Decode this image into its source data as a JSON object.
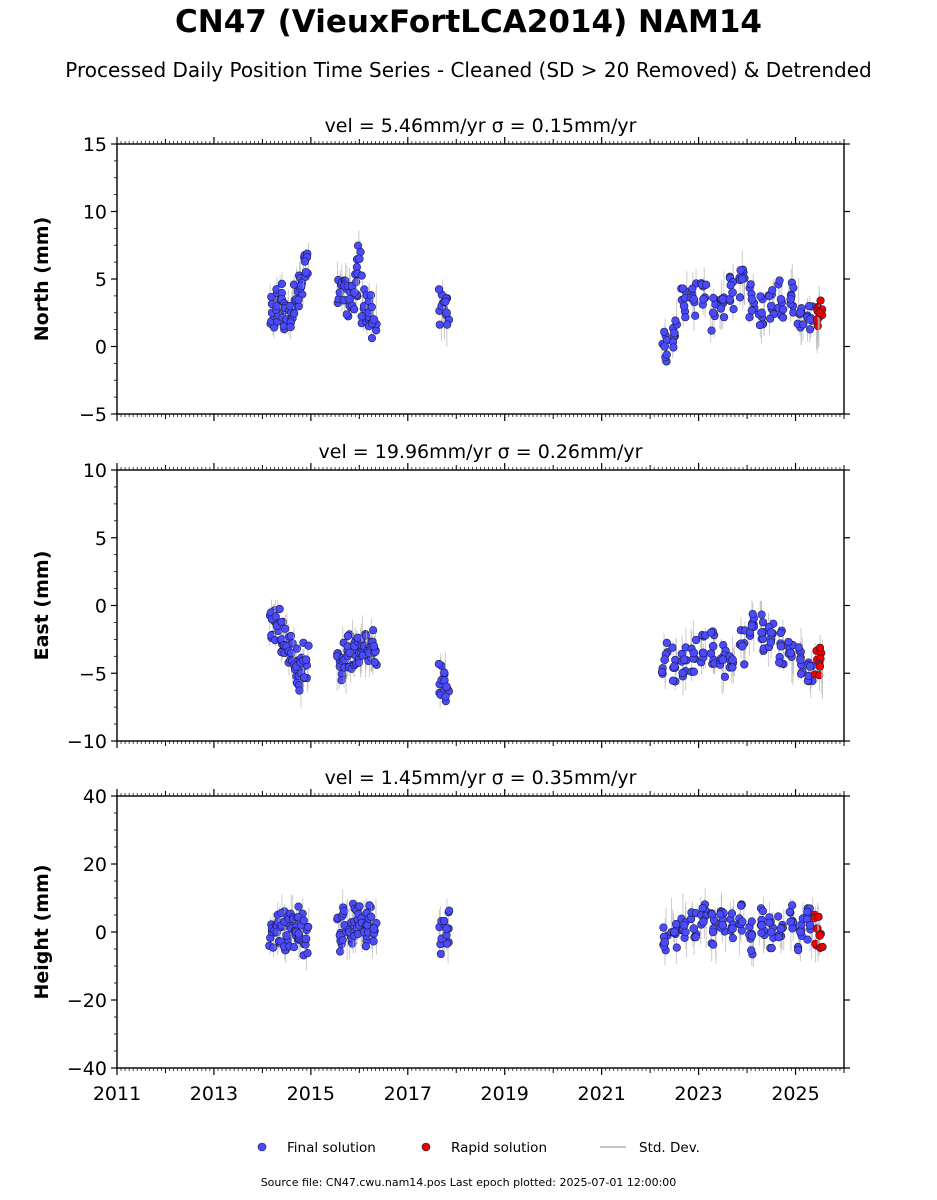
{
  "title": "CN47 (VieuxFortLCA2014) NAM14",
  "subtitle": "Processed Daily Position Time Series - Cleaned (SD > 20 Removed) & Detrended",
  "footer": "Source file: CN47.cwu.nam14.pos  Last epoch plotted: 2025-07-01 12:00:00",
  "colors": {
    "final": "#4a4aff",
    "rapid": "#ee0000",
    "stddev": "#b0b0b0",
    "marker_edge": "#1a1a40"
  },
  "legend": [
    {
      "key": "final",
      "label": "Final solution"
    },
    {
      "key": "rapid",
      "label": "Rapid solution"
    },
    {
      "key": "stddev",
      "label": "Std. Dev."
    }
  ],
  "chart_data": [
    {
      "type": "scatter",
      "title": "vel = 5.46mm/yr   σ = 0.15mm/yr",
      "ylabel": "North (mm)",
      "xlim": [
        2011,
        2026
      ],
      "ylim": [
        -5,
        15
      ],
      "yticks": [
        -5,
        0,
        5,
        10,
        15
      ],
      "ytick_labels": [
        "−5",
        "0",
        "5",
        "10",
        "15"
      ],
      "xticks": [
        2011,
        2013,
        2015,
        2017,
        2019,
        2021,
        2023,
        2025
      ],
      "xtick_labels": [],
      "series": [
        {
          "key": "final",
          "x": [
            2014.2,
            2014.3,
            2014.4,
            2014.5,
            2014.6,
            2014.7,
            2014.8,
            2014.9,
            2015.6,
            2015.7,
            2015.8,
            2015.9,
            2016.0,
            2016.1,
            2016.2,
            2016.3,
            2017.7,
            2017.8,
            2022.3,
            2022.5,
            2022.7,
            2022.9,
            2023.1,
            2023.3,
            2023.5,
            2023.7,
            2023.9,
            2024.1,
            2024.3,
            2024.5,
            2024.7,
            2024.9,
            2025.1,
            2025.3
          ],
          "y": [
            2.5,
            3.0,
            3.5,
            2.0,
            2.5,
            3.5,
            4.5,
            5.5,
            4.0,
            4.5,
            3.5,
            4.0,
            6.5,
            3.0,
            2.5,
            2.0,
            3.0,
            2.5,
            0.0,
            1.0,
            3.0,
            3.5,
            3.5,
            2.5,
            3.5,
            4.0,
            5.0,
            3.5,
            2.5,
            3.0,
            3.5,
            3.5,
            2.5,
            2.0
          ]
        },
        {
          "key": "rapid",
          "x": [
            2025.45,
            2025.5
          ],
          "y": [
            2.0,
            2.5
          ]
        }
      ]
    },
    {
      "type": "scatter",
      "title": "vel = 19.96mm/yr   σ = 0.26mm/yr",
      "ylabel": "East (mm)",
      "xlim": [
        2011,
        2026
      ],
      "ylim": [
        -10,
        10
      ],
      "yticks": [
        -10,
        -5,
        0,
        5,
        10
      ],
      "ytick_labels": [
        "−10",
        "−5",
        "0",
        "5",
        "10"
      ],
      "xticks": [
        2011,
        2013,
        2015,
        2017,
        2019,
        2021,
        2023,
        2025
      ],
      "xtick_labels": [],
      "series": [
        {
          "key": "final",
          "x": [
            2014.2,
            2014.3,
            2014.4,
            2014.5,
            2014.6,
            2014.7,
            2014.8,
            2014.9,
            2015.6,
            2015.7,
            2015.8,
            2015.9,
            2016.0,
            2016.1,
            2016.2,
            2016.3,
            2017.7,
            2017.8,
            2022.3,
            2022.5,
            2022.7,
            2022.9,
            2023.1,
            2023.3,
            2023.5,
            2023.7,
            2023.9,
            2024.1,
            2024.3,
            2024.5,
            2024.7,
            2024.9,
            2025.1,
            2025.3
          ],
          "y": [
            -1.0,
            -1.5,
            -2.5,
            -3.0,
            -3.5,
            -4.5,
            -5.0,
            -4.0,
            -4.5,
            -4.0,
            -3.5,
            -3.0,
            -3.5,
            -3.0,
            -3.5,
            -3.0,
            -5.5,
            -6.0,
            -4.0,
            -4.5,
            -4.0,
            -3.5,
            -3.5,
            -3.0,
            -4.0,
            -4.0,
            -3.0,
            -1.5,
            -2.0,
            -2.0,
            -3.0,
            -3.5,
            -4.0,
            -4.5
          ]
        },
        {
          "key": "rapid",
          "x": [
            2025.45,
            2025.5
          ],
          "y": [
            -4.0,
            -4.5
          ]
        }
      ]
    },
    {
      "type": "scatter",
      "title": "vel = 1.45mm/yr   σ = 0.35mm/yr",
      "ylabel": "Height (mm)",
      "xlim": [
        2011,
        2026
      ],
      "ylim": [
        -40,
        40
      ],
      "yticks": [
        -40,
        -20,
        0,
        20,
        40
      ],
      "ytick_labels": [
        "−40",
        "−20",
        "0",
        "20",
        "40"
      ],
      "xticks": [
        2011,
        2013,
        2015,
        2017,
        2019,
        2021,
        2023,
        2025
      ],
      "xtick_labels": [
        "2011",
        "2013",
        "2015",
        "2017",
        "2019",
        "2021",
        "2023",
        "2025"
      ],
      "series": [
        {
          "key": "final",
          "x": [
            2014.2,
            2014.3,
            2014.4,
            2014.5,
            2014.6,
            2014.7,
            2014.8,
            2014.9,
            2015.6,
            2015.7,
            2015.8,
            2015.9,
            2016.0,
            2016.1,
            2016.2,
            2016.3,
            2017.7,
            2017.8,
            2022.3,
            2022.5,
            2022.7,
            2022.9,
            2023.1,
            2023.3,
            2023.5,
            2023.7,
            2023.9,
            2024.1,
            2024.3,
            2024.5,
            2024.7,
            2024.9,
            2025.1,
            2025.3
          ],
          "y": [
            1.0,
            0.0,
            2.0,
            -1.0,
            1.0,
            0.0,
            2.0,
            -2.0,
            -1.0,
            2.0,
            0.0,
            3.0,
            2.0,
            0.0,
            4.0,
            1.0,
            -2.0,
            1.0,
            -3.0,
            0.0,
            2.0,
            1.0,
            3.0,
            0.0,
            2.0,
            1.0,
            3.0,
            -1.0,
            2.0,
            0.0,
            1.0,
            3.0,
            0.0,
            2.0
          ]
        },
        {
          "key": "rapid",
          "x": [
            2025.45,
            2025.5
          ],
          "y": [
            1.0,
            -1.0
          ]
        }
      ]
    }
  ]
}
